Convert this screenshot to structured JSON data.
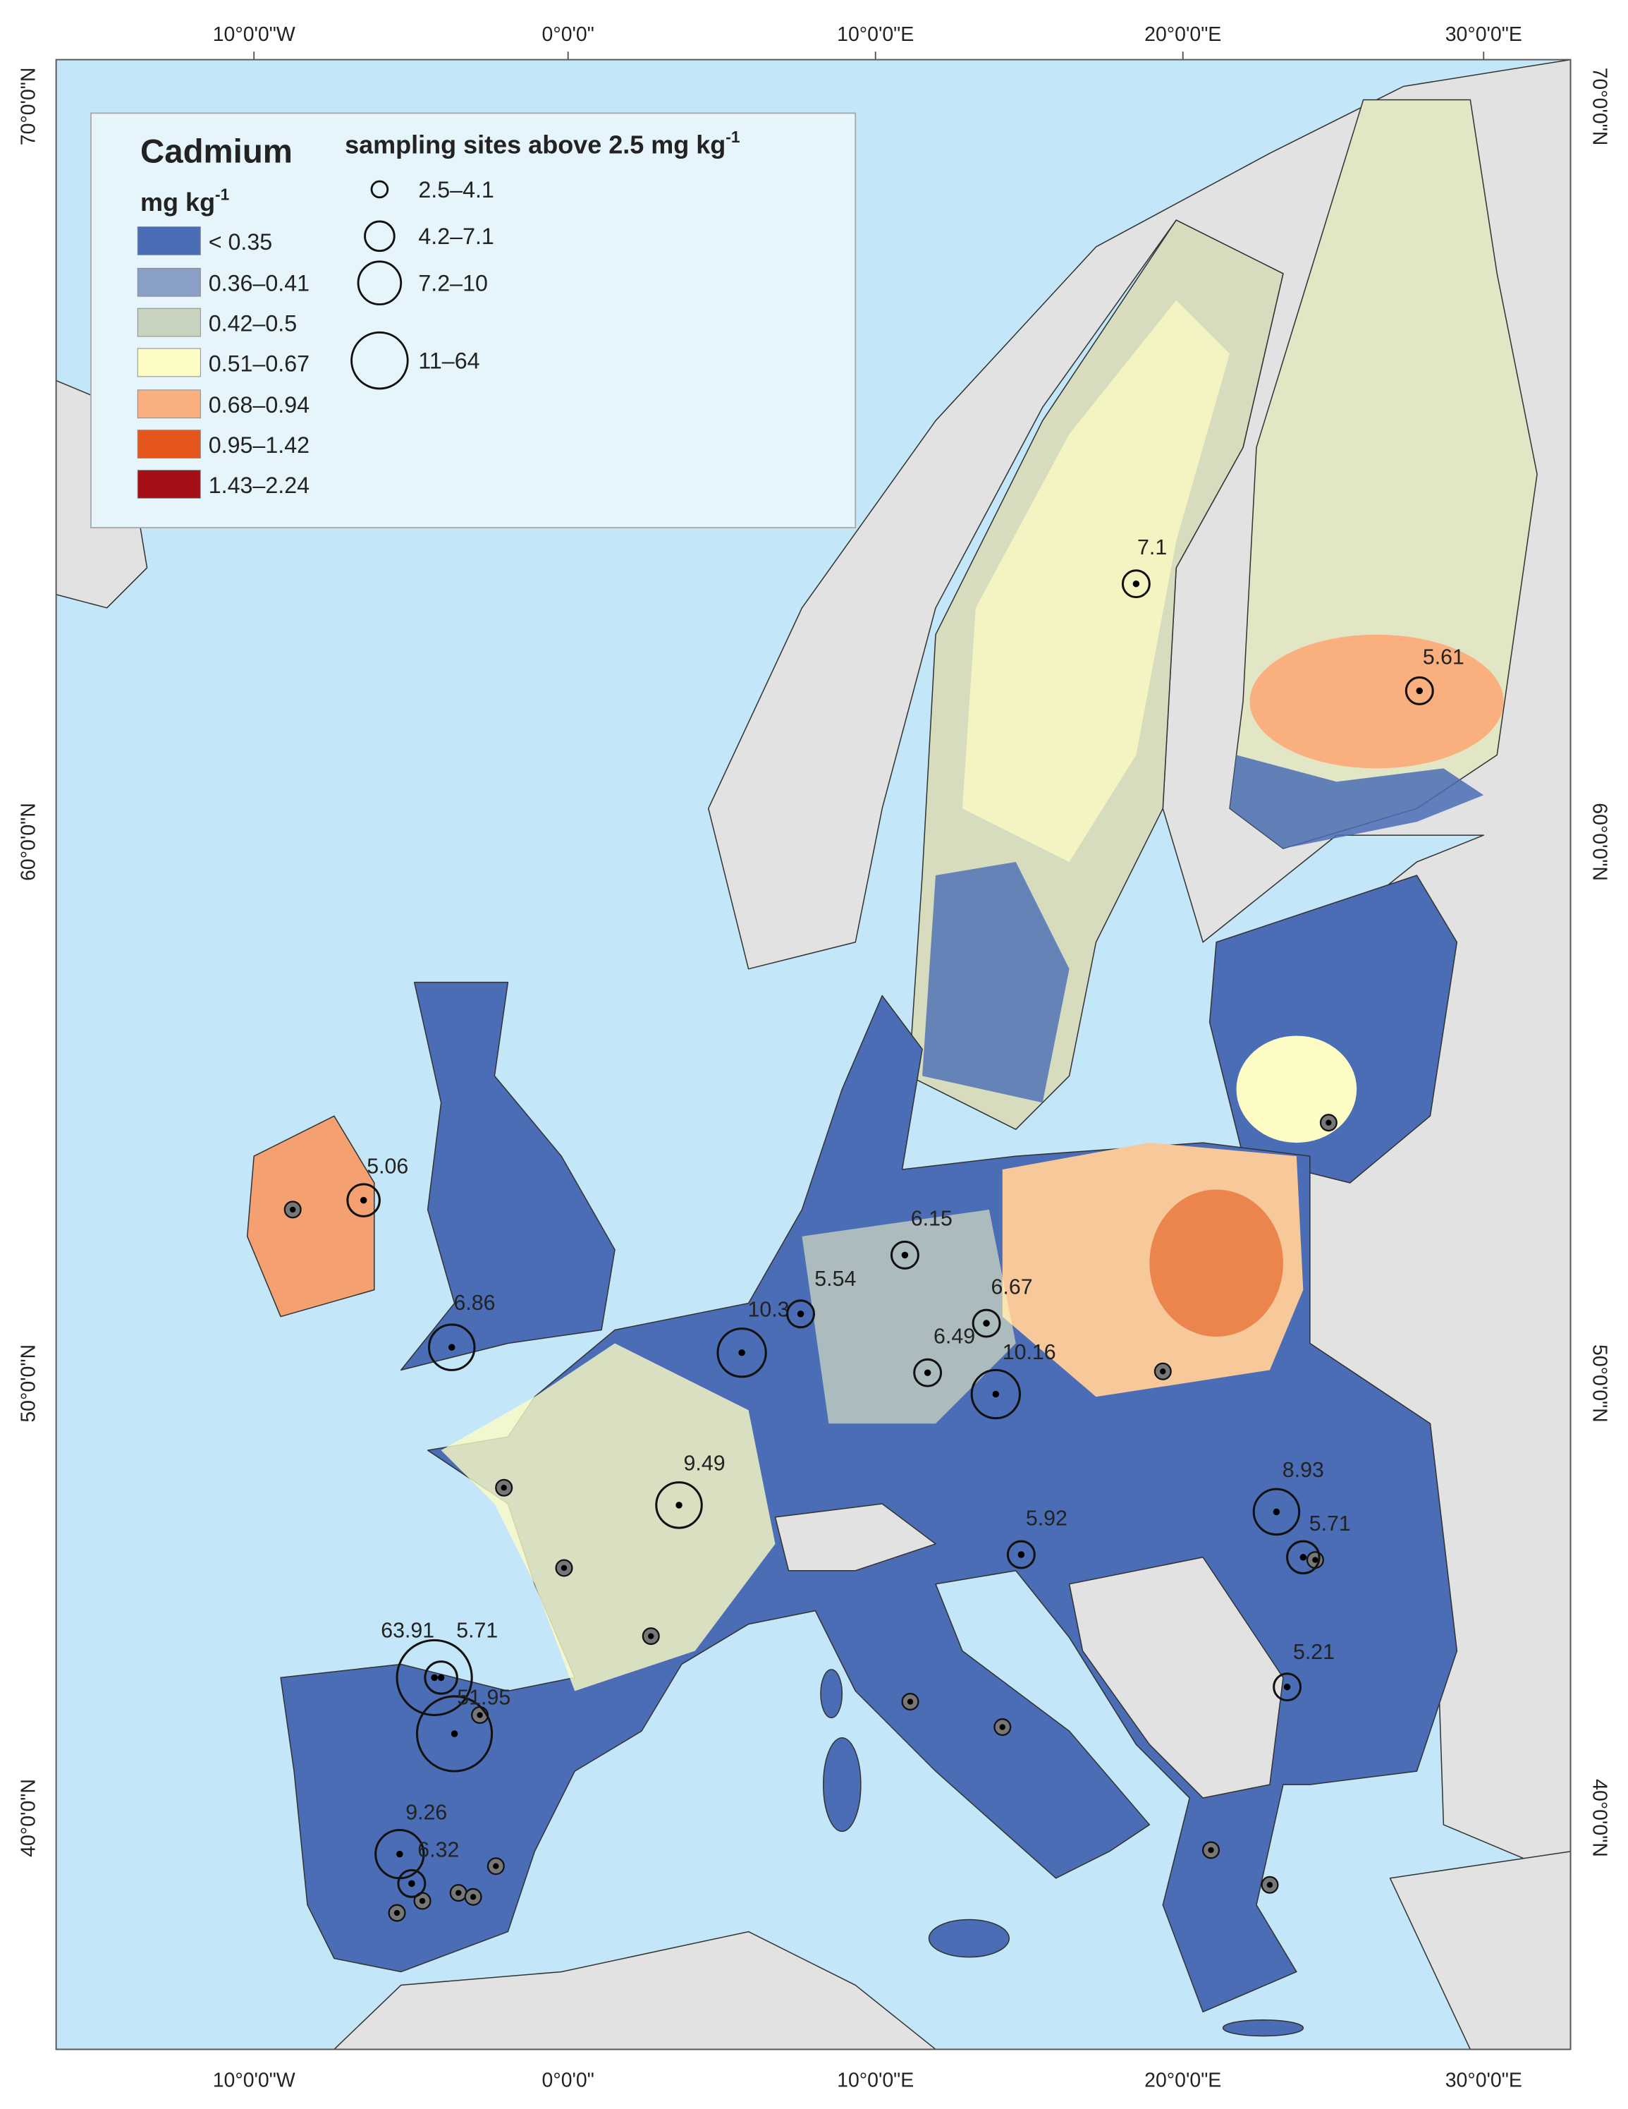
{
  "map": {
    "title": "Cadmium",
    "unit": "mg kg",
    "unit_sup": "-1",
    "classes": [
      {
        "label": "< 0.35",
        "color": "#4a6db5"
      },
      {
        "label": "0.36–0.41",
        "color": "#8a9fc6"
      },
      {
        "label": "0.42–0.5",
        "color": "#c9d4c0"
      },
      {
        "label": "0.51–0.67",
        "color": "#fdfcc4"
      },
      {
        "label": "0.68–0.94",
        "color": "#f9b07e"
      },
      {
        "label": "0.95–1.42",
        "color": "#e5561c"
      },
      {
        "label": "1.43–2.24",
        "color": "#a50f15"
      }
    ],
    "sites_title": "sampling sites above 2.5 mg kg",
    "sites_title_sup": "-1",
    "site_classes": [
      "2.5–4.1",
      "4.2–7.1",
      "7.2–10",
      "11–64"
    ],
    "longitudes": [
      "10°0'0\"W",
      "0°0'0\"",
      "10°0'0\"E",
      "20°0'0\"E",
      "30°0'0\"E"
    ],
    "latitudes": [
      "70°0'0\"N",
      "60°0'0\"N",
      "50°0'0\"N",
      "40°0'0\"N"
    ],
    "sites": [
      7.1,
      5.61,
      5.06,
      6.86,
      10.3,
      5.54,
      6.15,
      6.67,
      6.49,
      10.16,
      9.49,
      5.92,
      8.93,
      5.71,
      63.91,
      5.71,
      51.95,
      5.21,
      9.26,
      6.32
    ]
  }
}
